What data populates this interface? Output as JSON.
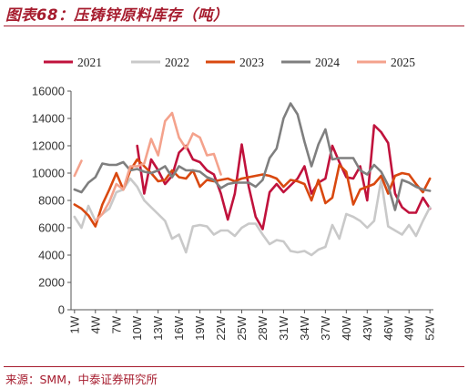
{
  "header": {
    "title": "图表68：压铸锌原料库存（吨）"
  },
  "footer": {
    "source": "来源：SMM，中泰证券研究所"
  },
  "chart_data": {
    "type": "line",
    "title": "图表68：压铸锌原料库存（吨）",
    "xlabel": "",
    "ylabel": "",
    "ylim": [
      0,
      16000
    ],
    "yticks": [
      "0",
      "2000",
      "4000",
      "6000",
      "8000",
      "10000",
      "12000",
      "14000",
      "16000"
    ],
    "xtick_labels": [
      "1W",
      "4W",
      "7W",
      "10W",
      "13W",
      "16W",
      "19W",
      "22W",
      "25W",
      "28W",
      "31W",
      "34W",
      "37W",
      "40W",
      "43W",
      "46W",
      "49W",
      "52W"
    ],
    "x": [
      1,
      2,
      3,
      4,
      5,
      6,
      7,
      8,
      9,
      10,
      11,
      12,
      13,
      14,
      15,
      16,
      17,
      18,
      19,
      20,
      21,
      22,
      23,
      24,
      25,
      26,
      27,
      28,
      29,
      30,
      31,
      32,
      33,
      34,
      35,
      36,
      37,
      38,
      39,
      40,
      41,
      42,
      43,
      44,
      45,
      46,
      47,
      48,
      49,
      50,
      51,
      52
    ],
    "grid": false,
    "legend_position": "top",
    "series": [
      {
        "name": "2021",
        "color": "#c0123c",
        "values": [
          null,
          null,
          null,
          null,
          null,
          null,
          null,
          null,
          null,
          12000,
          8500,
          11000,
          10200,
          9200,
          9800,
          11500,
          12000,
          11000,
          10800,
          10200,
          9900,
          8500,
          6600,
          8500,
          12100,
          9000,
          6800,
          5900,
          8600,
          9200,
          8600,
          9100,
          9600,
          10500,
          8500,
          9300,
          9600,
          12000,
          10800,
          9700,
          9600,
          10500,
          8000,
          13500,
          13000,
          12200,
          8500,
          7500,
          7100,
          7100,
          8200,
          7400
        ]
      },
      {
        "name": "2022",
        "color": "#c9c9c9",
        "values": [
          6800,
          6000,
          7600,
          6500,
          7000,
          7400,
          8600,
          8800,
          9600,
          9000,
          8000,
          7500,
          7000,
          6500,
          5200,
          5500,
          4200,
          6100,
          6200,
          6100,
          5500,
          5800,
          5800,
          5400,
          6000,
          6300,
          6300,
          5500,
          4800,
          5100,
          5000,
          4300,
          4200,
          4300,
          4000,
          4400,
          4600,
          6200,
          5200,
          7000,
          6800,
          6500,
          6000,
          6500,
          9500,
          6100,
          5800,
          5500,
          6200,
          5400,
          6500,
          7500
        ]
      },
      {
        "name": "2023",
        "color": "#d9480f",
        "values": [
          7700,
          7400,
          6900,
          6100,
          7700,
          8800,
          10000,
          8800,
          10200,
          11000,
          10500,
          10000,
          9400,
          9500,
          10200,
          9700,
          9600,
          10200,
          9000,
          9500,
          9400,
          9500,
          9600,
          9400,
          9600,
          9700,
          9800,
          9900,
          9800,
          9600,
          9000,
          9500,
          9400,
          9200,
          8000,
          9500,
          7800,
          8200,
          10600,
          10100,
          7700,
          8800,
          9000,
          9200,
          9800,
          8500,
          9800,
          10000,
          9900,
          9200,
          8600,
          9600
        ]
      },
      {
        "name": "2024",
        "color": "#7f7f7f",
        "values": [
          8800,
          8600,
          9300,
          9700,
          10700,
          10600,
          10600,
          10800,
          10200,
          10300,
          10100,
          10000,
          10200,
          10500,
          9700,
          10500,
          10200,
          10200,
          10100,
          9700,
          9500,
          8900,
          9200,
          9300,
          9300,
          9300,
          9000,
          9500,
          11100,
          11800,
          14000,
          15100,
          14300,
          12300,
          10500,
          12100,
          13200,
          11000,
          11100,
          11100,
          11100,
          10200,
          9900,
          10600,
          10100,
          9100,
          7300,
          9500,
          9300,
          9000,
          8800,
          8700
        ]
      },
      {
        "name": "2025",
        "color": "#f4a28c",
        "values": [
          9800,
          10900,
          null,
          6500,
          7000,
          7900,
          9200,
          8800,
          10500,
          10500,
          10700,
          12500,
          11300,
          13800,
          14400,
          12600,
          11800,
          12900,
          12600,
          11300,
          11400,
          9900,
          null,
          null,
          null,
          null,
          null,
          null,
          null,
          null,
          null,
          null,
          null,
          null,
          null,
          null,
          null,
          null,
          null,
          null,
          null,
          null,
          null,
          null,
          null,
          null,
          null,
          null,
          null,
          null,
          null,
          null
        ]
      }
    ]
  }
}
